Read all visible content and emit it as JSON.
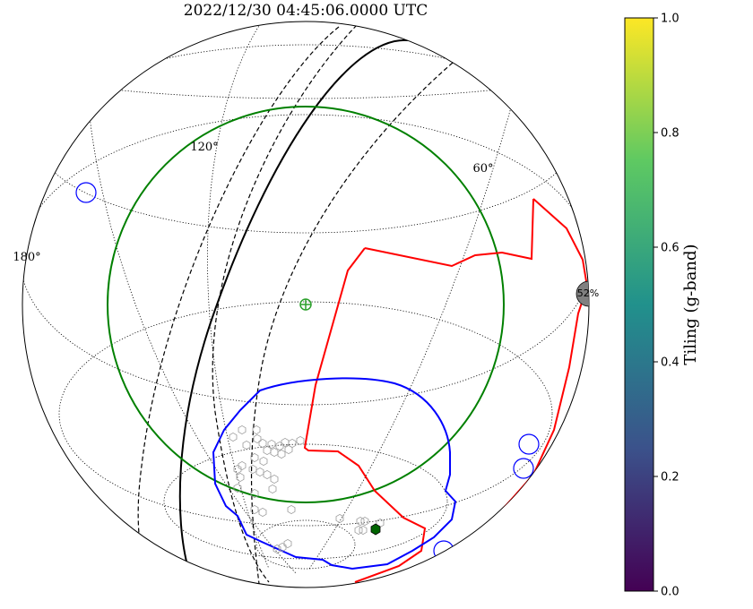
{
  "title": "2022/12/30 04:45:06.0000 UTC",
  "colorbar": {
    "label": "Tiling (g-band)",
    "ticks": [
      "0.0",
      "0.2",
      "0.4",
      "0.6",
      "0.8",
      "1.0"
    ],
    "colormap": [
      "#440154",
      "#3b528b",
      "#21918c",
      "#5ec962",
      "#fde725"
    ]
  },
  "chart_data": {
    "type": "scatter",
    "title": "2022/12/30 04:45:06.0000 UTC",
    "projection": "orthographic sky map",
    "graticule_labels": [
      "120°",
      "60°",
      "180°"
    ],
    "moon_illumination_label": "52%",
    "colorbar_range": [
      0,
      1
    ],
    "colorbar_label": "Tiling (g-band)",
    "grid": true,
    "layers": [
      "sky grid",
      "galactic plane",
      "ecliptic",
      "horizon limits",
      "localization contour",
      "tiled fields",
      "planet markers"
    ],
    "colors": {
      "horizon": "#ff0000",
      "contour": "#0000ff",
      "field_circle": "#008000",
      "tile_outline": "#b0b0b0",
      "tile_fill_active": "#006400",
      "moon": "#808080"
    }
  }
}
